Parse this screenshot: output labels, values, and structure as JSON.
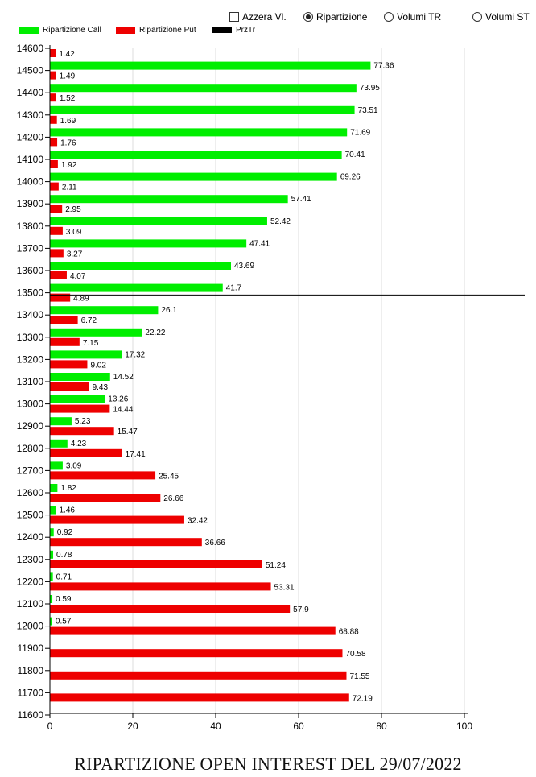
{
  "controls": {
    "reset_label": "Azzera Vl.",
    "ripartizione_label": "Ripartizione",
    "volumi_tr_label": "Volumi TR",
    "volumi_st_label": "Volumi ST",
    "selected": "Ripartizione"
  },
  "legend": {
    "call_label": "Ripartizione Call",
    "put_label": "Ripartizione Put",
    "prz_label": "PrzTr"
  },
  "colors": {
    "call": "#00ee00",
    "put": "#ee0000",
    "prz": "#000000",
    "grid": "#dddddd"
  },
  "caption": "RIPARTIZIONE OPEN INTEREST DEL 29/07/2022",
  "chart_data": {
    "type": "bar",
    "orientation": "horizontal",
    "xlim": [
      0,
      115
    ],
    "xticks": [
      0,
      20,
      40,
      60,
      80,
      100
    ],
    "ylim": [
      11600,
      14650
    ],
    "yticks": [
      14600,
      14500,
      14400,
      14300,
      14200,
      14100,
      14000,
      13900,
      13800,
      13700,
      13600,
      13500,
      13400,
      13300,
      13200,
      13100,
      13000,
      12900,
      12800,
      12700,
      12600,
      12500,
      12400,
      12300,
      12200,
      12100,
      12000,
      11900,
      11800,
      11700,
      11600
    ],
    "categories": [
      14600,
      14500,
      14400,
      14300,
      14200,
      14100,
      14000,
      13900,
      13800,
      13700,
      13600,
      13500,
      13400,
      13300,
      13200,
      13100,
      13000,
      12900,
      12800,
      12700,
      12600,
      12500,
      12400,
      12300,
      12200,
      12100,
      12000,
      11900,
      11800,
      11700
    ],
    "series": [
      {
        "name": "Ripartizione Call",
        "color": "#00ee00",
        "values": [
          null,
          77.36,
          73.95,
          73.51,
          71.69,
          70.41,
          69.26,
          57.41,
          52.42,
          47.41,
          43.69,
          41.7,
          26.1,
          22.22,
          17.32,
          14.52,
          13.26,
          5.23,
          4.23,
          3.09,
          1.82,
          1.46,
          0.92,
          0.78,
          0.71,
          0.59,
          0.57,
          null,
          null,
          null
        ]
      },
      {
        "name": "Ripartizione Put",
        "color": "#ee0000",
        "values": [
          1.42,
          1.49,
          1.52,
          1.69,
          1.76,
          1.92,
          2.11,
          2.95,
          3.09,
          3.27,
          4.07,
          4.89,
          6.72,
          7.15,
          9.02,
          9.43,
          14.44,
          15.47,
          17.41,
          25.45,
          26.66,
          32.42,
          36.66,
          51.24,
          53.31,
          57.9,
          68.88,
          70.58,
          71.55,
          72.19
        ]
      }
    ],
    "price_line": {
      "name": "PrzTr",
      "y": 13490
    },
    "grid": {
      "x": true,
      "y": false
    },
    "legend_position": "top-left"
  }
}
